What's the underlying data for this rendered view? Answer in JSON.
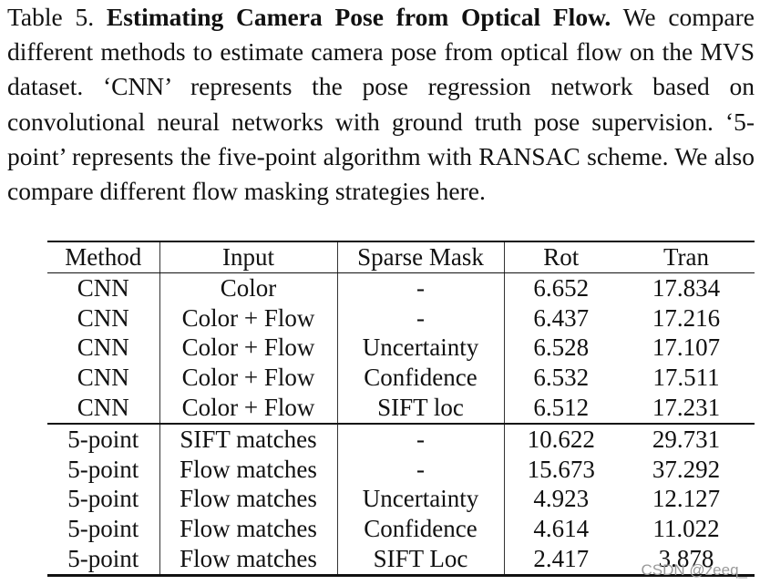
{
  "caption": {
    "label": "Table 5.",
    "title": "Estimating Camera Pose from Optical Flow.",
    "body": "We compare different methods to estimate camera pose from optical flow on the MVS dataset. ‘CNN’ represents the pose regression network based on convolutional neural networks with ground truth pose supervision. ‘5-point’ represents the five-point algorithm with RANSAC scheme. We also compare different flow masking strategies here."
  },
  "table": {
    "headers": [
      "Method",
      "Input",
      "Sparse Mask",
      "Rot",
      "Tran"
    ],
    "groups": [
      {
        "rows": [
          {
            "method": "CNN",
            "input": "Color",
            "mask": "-",
            "rot": "6.652",
            "tran": "17.834"
          },
          {
            "method": "CNN",
            "input": "Color + Flow",
            "mask": "-",
            "rot": "6.437",
            "tran": "17.216"
          },
          {
            "method": "CNN",
            "input": "Color + Flow",
            "mask": "Uncertainty",
            "rot": "6.528",
            "tran": "17.107"
          },
          {
            "method": "CNN",
            "input": "Color + Flow",
            "mask": "Confidence",
            "rot": "6.532",
            "tran": "17.511"
          },
          {
            "method": "CNN",
            "input": "Color + Flow",
            "mask": "SIFT loc",
            "rot": "6.512",
            "tran": "17.231"
          }
        ]
      },
      {
        "rows": [
          {
            "method": "5-point",
            "input": "SIFT matches",
            "mask": "-",
            "rot": "10.622",
            "tran": "29.731"
          },
          {
            "method": "5-point",
            "input": "Flow matches",
            "mask": "-",
            "rot": "15.673",
            "tran": "37.292"
          },
          {
            "method": "5-point",
            "input": "Flow matches",
            "mask": "Uncertainty",
            "rot": "4.923",
            "tran": "12.127"
          },
          {
            "method": "5-point",
            "input": "Flow matches",
            "mask": "Confidence",
            "rot": "4.614",
            "tran": "11.022"
          },
          {
            "method": "5-point",
            "input": "Flow matches",
            "mask": "SIFT Loc",
            "rot": "2.417",
            "tran": "3.878"
          }
        ]
      }
    ]
  },
  "watermark": "CSDN @zeeq_"
}
